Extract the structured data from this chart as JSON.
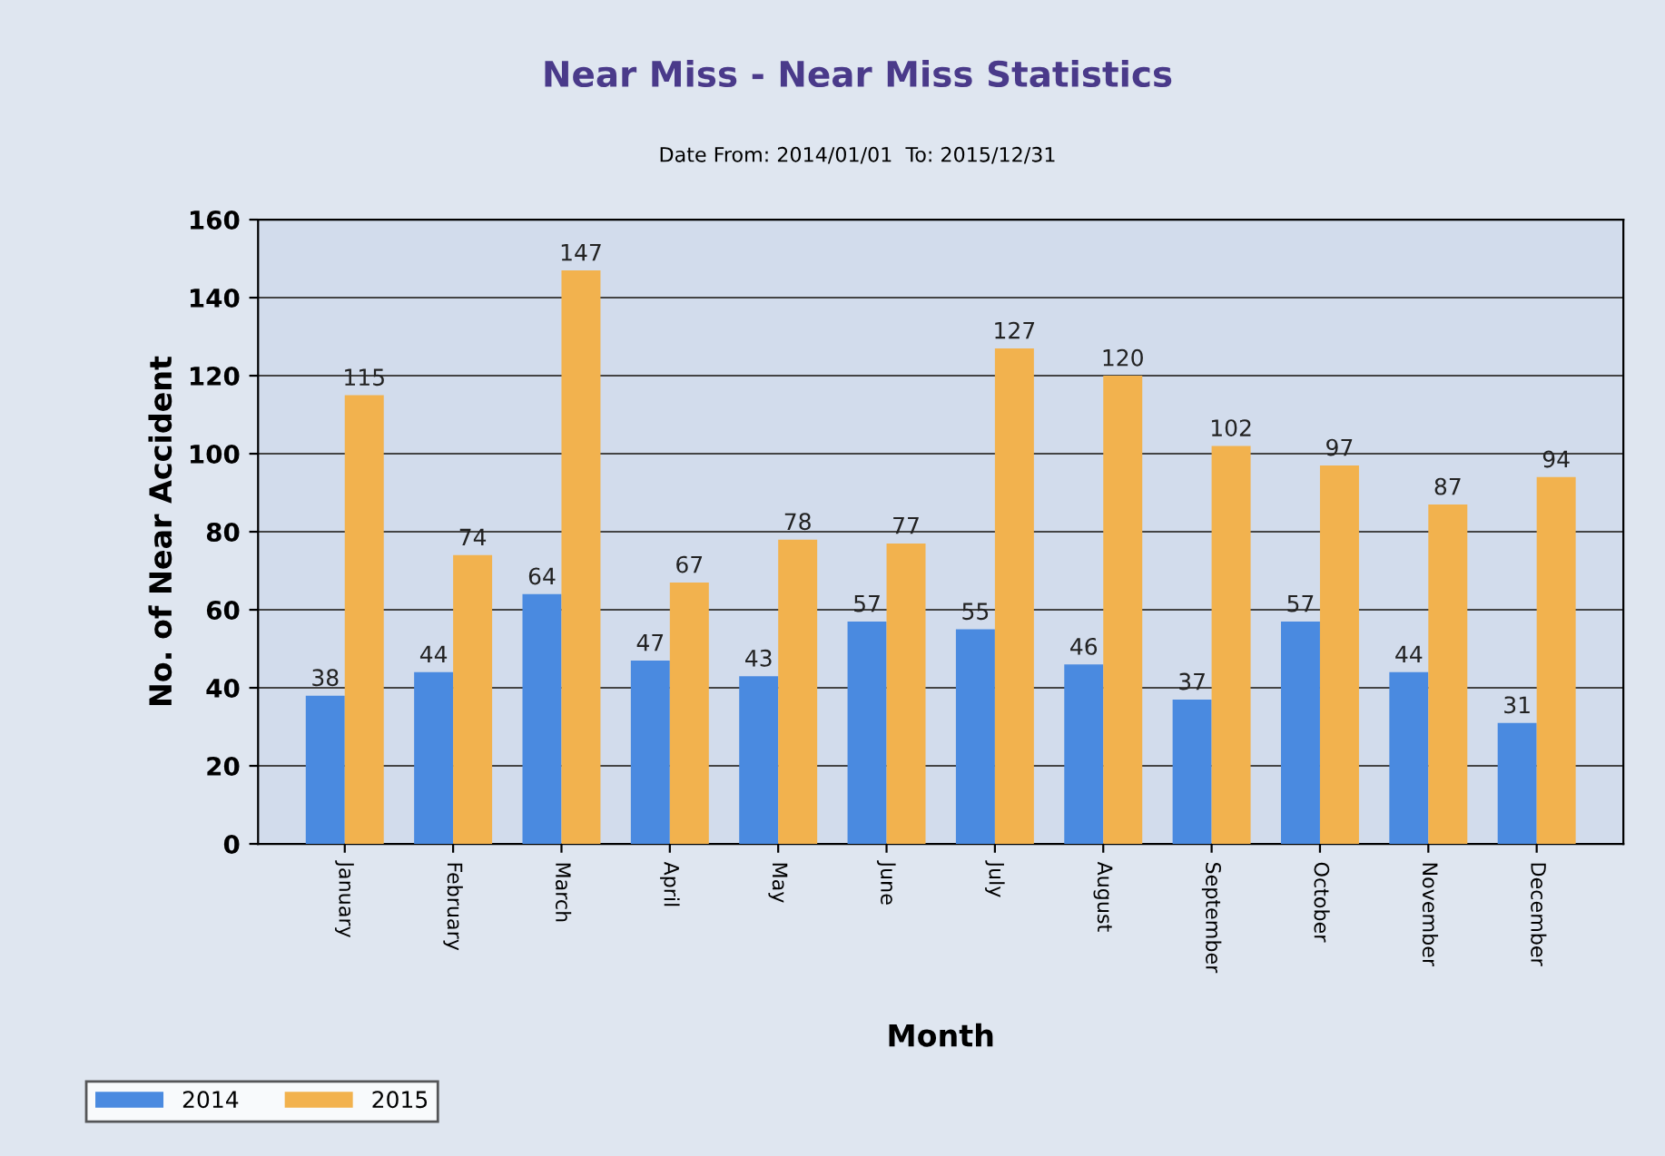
{
  "chart_data": {
    "type": "bar",
    "title": "Near Miss - Near Miss Statistics",
    "subtitle": "Date From: 2014/01/01  To: 2015/12/31",
    "xlabel": "Month",
    "ylabel": "No. of Near Accident",
    "categories": [
      "January",
      "February",
      "March",
      "April",
      "May",
      "June",
      "July",
      "August",
      "September",
      "October",
      "November",
      "December"
    ],
    "series": [
      {
        "name": "2014",
        "color": "#4a8ae0",
        "values": [
          38,
          44,
          64,
          47,
          43,
          57,
          55,
          46,
          37,
          57,
          44,
          31
        ]
      },
      {
        "name": "2015",
        "color": "#f2b24e",
        "values": [
          115,
          74,
          147,
          67,
          78,
          77,
          127,
          120,
          102,
          97,
          87,
          94
        ]
      }
    ],
    "ylim": [
      0,
      160
    ],
    "yticks": [
      0,
      20,
      40,
      60,
      80,
      100,
      120,
      140,
      160
    ],
    "grid": "y",
    "legend": "bottom left",
    "data_labels": true
  }
}
